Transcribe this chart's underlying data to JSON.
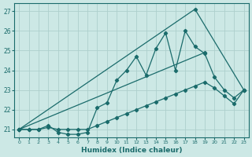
{
  "xlabel": "Humidex (Indice chaleur)",
  "background_color": "#cce8e5",
  "grid_color": "#aecfcc",
  "line_color": "#1a6b6b",
  "xlim": [
    -0.5,
    23.5
  ],
  "ylim": [
    20.6,
    27.4
  ],
  "yticks": [
    21,
    22,
    23,
    24,
    25,
    26,
    27
  ],
  "xticks": [
    0,
    1,
    2,
    3,
    4,
    5,
    6,
    7,
    8,
    9,
    10,
    11,
    12,
    13,
    14,
    15,
    16,
    17,
    18,
    19,
    20,
    21,
    22,
    23
  ],
  "series_smooth": {
    "x": [
      0,
      1,
      2,
      3,
      4,
      5,
      6,
      7,
      8,
      9,
      10,
      11,
      12,
      13,
      14,
      15,
      16,
      17,
      18,
      19,
      20,
      21,
      22,
      23
    ],
    "y": [
      21.0,
      21.0,
      21.0,
      21.1,
      21.0,
      21.0,
      21.0,
      21.0,
      21.2,
      21.4,
      21.6,
      21.8,
      22.0,
      22.2,
      22.4,
      22.6,
      22.8,
      23.0,
      23.2,
      23.4,
      23.1,
      22.7,
      22.3,
      23.0
    ]
  },
  "series_jagged": {
    "x": [
      0,
      1,
      2,
      3,
      4,
      5,
      6,
      7,
      8,
      9,
      10,
      11,
      12,
      13,
      14,
      15,
      16,
      17,
      18,
      19,
      20,
      21,
      22,
      23
    ],
    "y": [
      21.0,
      21.0,
      21.0,
      21.2,
      20.85,
      20.75,
      20.75,
      20.85,
      22.1,
      22.35,
      23.5,
      24.0,
      24.7,
      23.75,
      25.1,
      25.9,
      24.0,
      26.0,
      25.2,
      24.85,
      23.65,
      23.0,
      22.6,
      23.0
    ]
  },
  "series_line1": {
    "x": [
      0,
      19
    ],
    "y": [
      21.0,
      24.9
    ]
  },
  "series_line2": {
    "x": [
      0,
      18,
      23
    ],
    "y": [
      21.0,
      27.1,
      23.0
    ]
  }
}
